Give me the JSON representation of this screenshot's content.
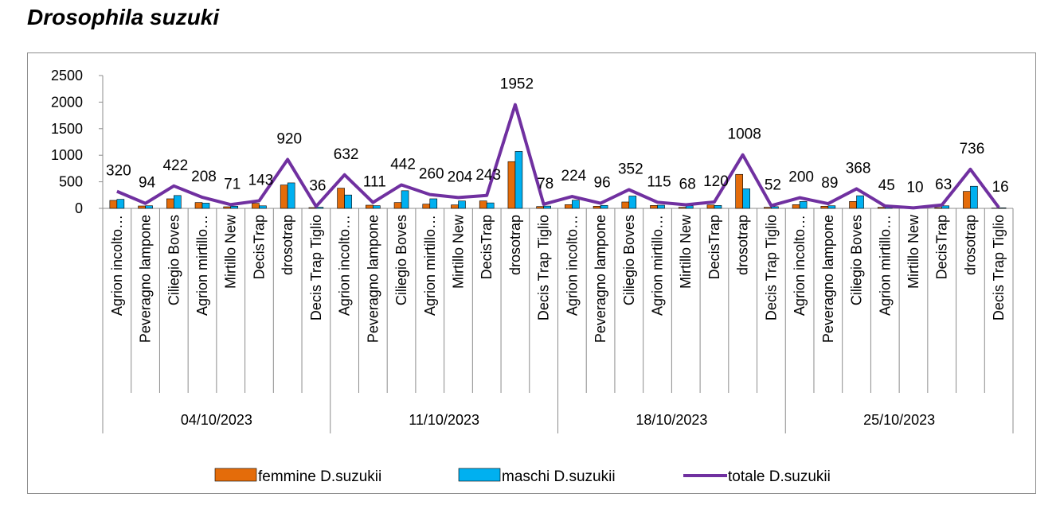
{
  "title": "Drosophila suzuki",
  "chart_data": {
    "type": "bar",
    "combo": "bar+line",
    "ylim": [
      0,
      2500
    ],
    "yticks": [
      0,
      500,
      1000,
      1500,
      2000,
      2500
    ],
    "grid": false,
    "legend_position": "bottom",
    "groups": [
      {
        "label": "04/10/2023",
        "categories": [
          "Agrion incolto…",
          "Peveragno lampone",
          "Ciliegio Boves",
          "Agrion mirtillo…",
          "Mirtillo New",
          "DecisTrap",
          "drosotrap",
          "Decis Trap Tiglio"
        ]
      },
      {
        "label": "11/10/2023",
        "categories": [
          "Agrion incolto…",
          "Peveragno lampone",
          "Ciliegio Boves",
          "Agrion mirtillo…",
          "Mirtillo New",
          "DecisTrap",
          "drosotrap",
          "Decis Trap Tiglio"
        ]
      },
      {
        "label": "18/10/2023",
        "categories": [
          "Agrion incolto…",
          "Peveragno lampone",
          "Ciliegio Boves",
          "Agrion mirtillo…",
          "Mirtillo New",
          "DecisTrap",
          "drosotrap",
          "Decis Trap Tiglio"
        ]
      },
      {
        "label": "25/10/2023",
        "categories": [
          "Agrion incolto…",
          "Peveragno lampone",
          "Ciliegio Boves",
          "Agrion mirtillo…",
          "Mirtillo New",
          "DecisTrap",
          "drosotrap",
          "Decis Trap Tiglio"
        ]
      }
    ],
    "series": [
      {
        "name": "femmine D.suzukii",
        "type": "bar",
        "color": "#E46C0A",
        "values": [
          150,
          45,
          180,
          110,
          30,
          95,
          440,
          15,
          380,
          60,
          110,
          80,
          65,
          140,
          880,
          35,
          70,
          40,
          120,
          55,
          20,
          65,
          640,
          20,
          70,
          40,
          130,
          20,
          5,
          15,
          320,
          5
        ]
      },
      {
        "name": "maschi D.suzukii",
        "type": "bar",
        "color": "#00B0F0",
        "values": [
          170,
          49,
          242,
          98,
          41,
          48,
          480,
          21,
          252,
          51,
          332,
          180,
          139,
          103,
          1072,
          43,
          154,
          56,
          232,
          60,
          48,
          55,
          368,
          32,
          130,
          49,
          238,
          25,
          5,
          48,
          416,
          11
        ]
      },
      {
        "name": "totale D.suzukii",
        "type": "line",
        "color": "#7030A0",
        "values": [
          320,
          94,
          422,
          208,
          71,
          143,
          920,
          36,
          632,
          111,
          442,
          260,
          204,
          243,
          1952,
          78,
          224,
          96,
          352,
          115,
          68,
          120,
          1008,
          52,
          200,
          89,
          368,
          45,
          10,
          63,
          736,
          16
        ]
      }
    ]
  }
}
